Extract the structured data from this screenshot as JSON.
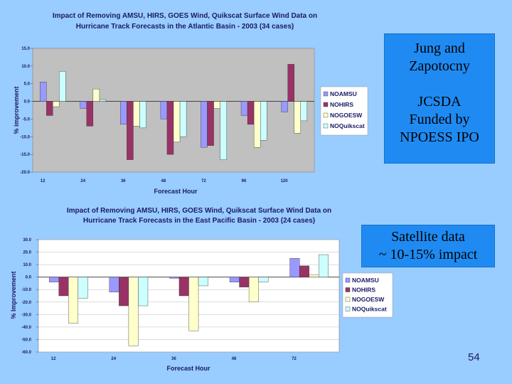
{
  "slide": {
    "box1_lines": [
      "Jung and",
      "Zapotocny",
      "",
      "JCSDA",
      "Funded by",
      "NPOESS IPO"
    ],
    "box2_lines": [
      "Satellite data",
      "~ 10-15% impact"
    ],
    "page_number": "54"
  },
  "colors": {
    "NOAMSU": "#9999FF",
    "NOHIRS": "#993366",
    "NOGOESW": "#FFFFCC",
    "NOQuikscat": "#CCFFFF"
  },
  "chart_data": [
    {
      "type": "bar",
      "title": [
        "Impact of Removing AMSU, HIRS, GOES Wind, Quikscat Surface Wind Data on",
        "Hurricane Track Forecasts in the Atlantic Basin - 2003 (34 cases)"
      ],
      "xlabel": "Forecast Hour",
      "ylabel": "% improvement",
      "categories": [
        "12",
        "24",
        "36",
        "48",
        "72",
        "96",
        "120"
      ],
      "ylim": [
        -20,
        15
      ],
      "yticks": [
        15,
        10,
        5,
        0,
        -5,
        -10,
        -15,
        -20
      ],
      "ytick_labels": [
        "15.0",
        "10.0",
        "5.0",
        "0.0",
        "-5.0",
        "-10.0",
        "-15.0",
        "-20.0"
      ],
      "legend": [
        "NOAMSU",
        "NOHIRS",
        "NOGOESW",
        "NOQuikscat"
      ],
      "legend_position": "right",
      "series": [
        {
          "name": "NOAMSU",
          "values": [
            5.5,
            -2.0,
            -6.5,
            -5.0,
            -13.0,
            -4.0,
            -3.0
          ]
        },
        {
          "name": "NOHIRS",
          "values": [
            -4.0,
            -7.0,
            -16.5,
            -15.0,
            -12.5,
            -6.5,
            10.5
          ]
        },
        {
          "name": "NOGOESW",
          "values": [
            -1.5,
            3.5,
            -7.0,
            -11.5,
            -2.0,
            -13.0,
            -9.0
          ]
        },
        {
          "name": "NOQuikscat",
          "values": [
            8.5,
            0.5,
            -7.5,
            -10.0,
            -16.5,
            -11.0,
            -5.5
          ]
        }
      ]
    },
    {
      "type": "bar",
      "title": [
        "Impact of Removing AMSU, HIRS, GOES Wind, Quikscat Surface Wind Data on",
        "Hurricane Track Forecasts in the East Pacific Basin - 2003 (24 cases)"
      ],
      "xlabel": "Forecast Hour",
      "ylabel": "% Improvement",
      "categories": [
        "12",
        "24",
        "36",
        "48",
        "72"
      ],
      "ylim": [
        -60,
        30
      ],
      "yticks": [
        30,
        20,
        10,
        0,
        -10,
        -20,
        -30,
        -40,
        -50,
        -60
      ],
      "ytick_labels": [
        "30.0",
        "20.0",
        "10.0",
        "0.0",
        "-10.0",
        "-20.0",
        "-30.0",
        "-40.0",
        "-50.0",
        "-60.0"
      ],
      "legend": [
        "NOAMSU",
        "NOHIRS",
        "NOGOESW",
        "NOQuikscat"
      ],
      "legend_position": "right",
      "series": [
        {
          "name": "NOAMSU",
          "values": [
            -4.0,
            -12.0,
            -1.0,
            -4.0,
            15.0
          ]
        },
        {
          "name": "NOHIRS",
          "values": [
            -15.0,
            -23.0,
            -15.0,
            -8.0,
            9.0
          ]
        },
        {
          "name": "NOGOESW",
          "values": [
            -37.0,
            -55.0,
            -43.0,
            -20.0,
            2.0
          ]
        },
        {
          "name": "NOQuikscat",
          "values": [
            -17.0,
            -23.0,
            -7.0,
            -4.0,
            18.0
          ]
        }
      ]
    }
  ]
}
